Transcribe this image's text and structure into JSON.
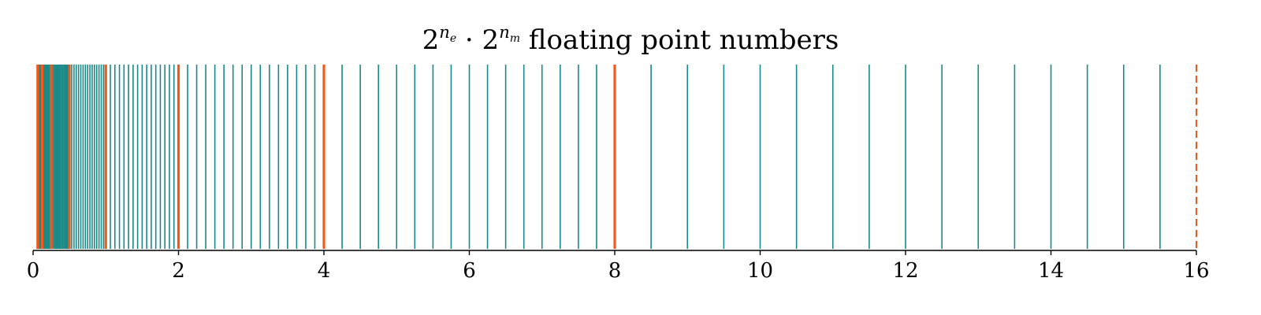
{
  "chart_data": {
    "type": "rug",
    "title": {
      "base1": "2",
      "exp1_sym": "n",
      "exp1_sub": "e",
      "dot": " · ",
      "base2": "2",
      "exp2_sym": "n",
      "exp2_sub": "m",
      "suffix": " floating point numbers"
    },
    "xlim": [
      0,
      16
    ],
    "xticks": [
      0,
      2,
      4,
      6,
      8,
      10,
      12,
      14,
      16
    ],
    "xtick_labels": [
      "0",
      "2",
      "4",
      "6",
      "8",
      "10",
      "12",
      "14",
      "16"
    ],
    "grid": false,
    "n_exponents": 8,
    "n_mantissa": 16,
    "powers_of_two": [
      0.0625,
      0.125,
      0.25,
      0.5,
      1,
      2,
      4,
      8
    ],
    "upper_bound": 16,
    "colors": {
      "numbers": "#1a8a88",
      "powers": "#f05a1e",
      "bound": "#f05a1e",
      "axis": "#000000"
    }
  }
}
